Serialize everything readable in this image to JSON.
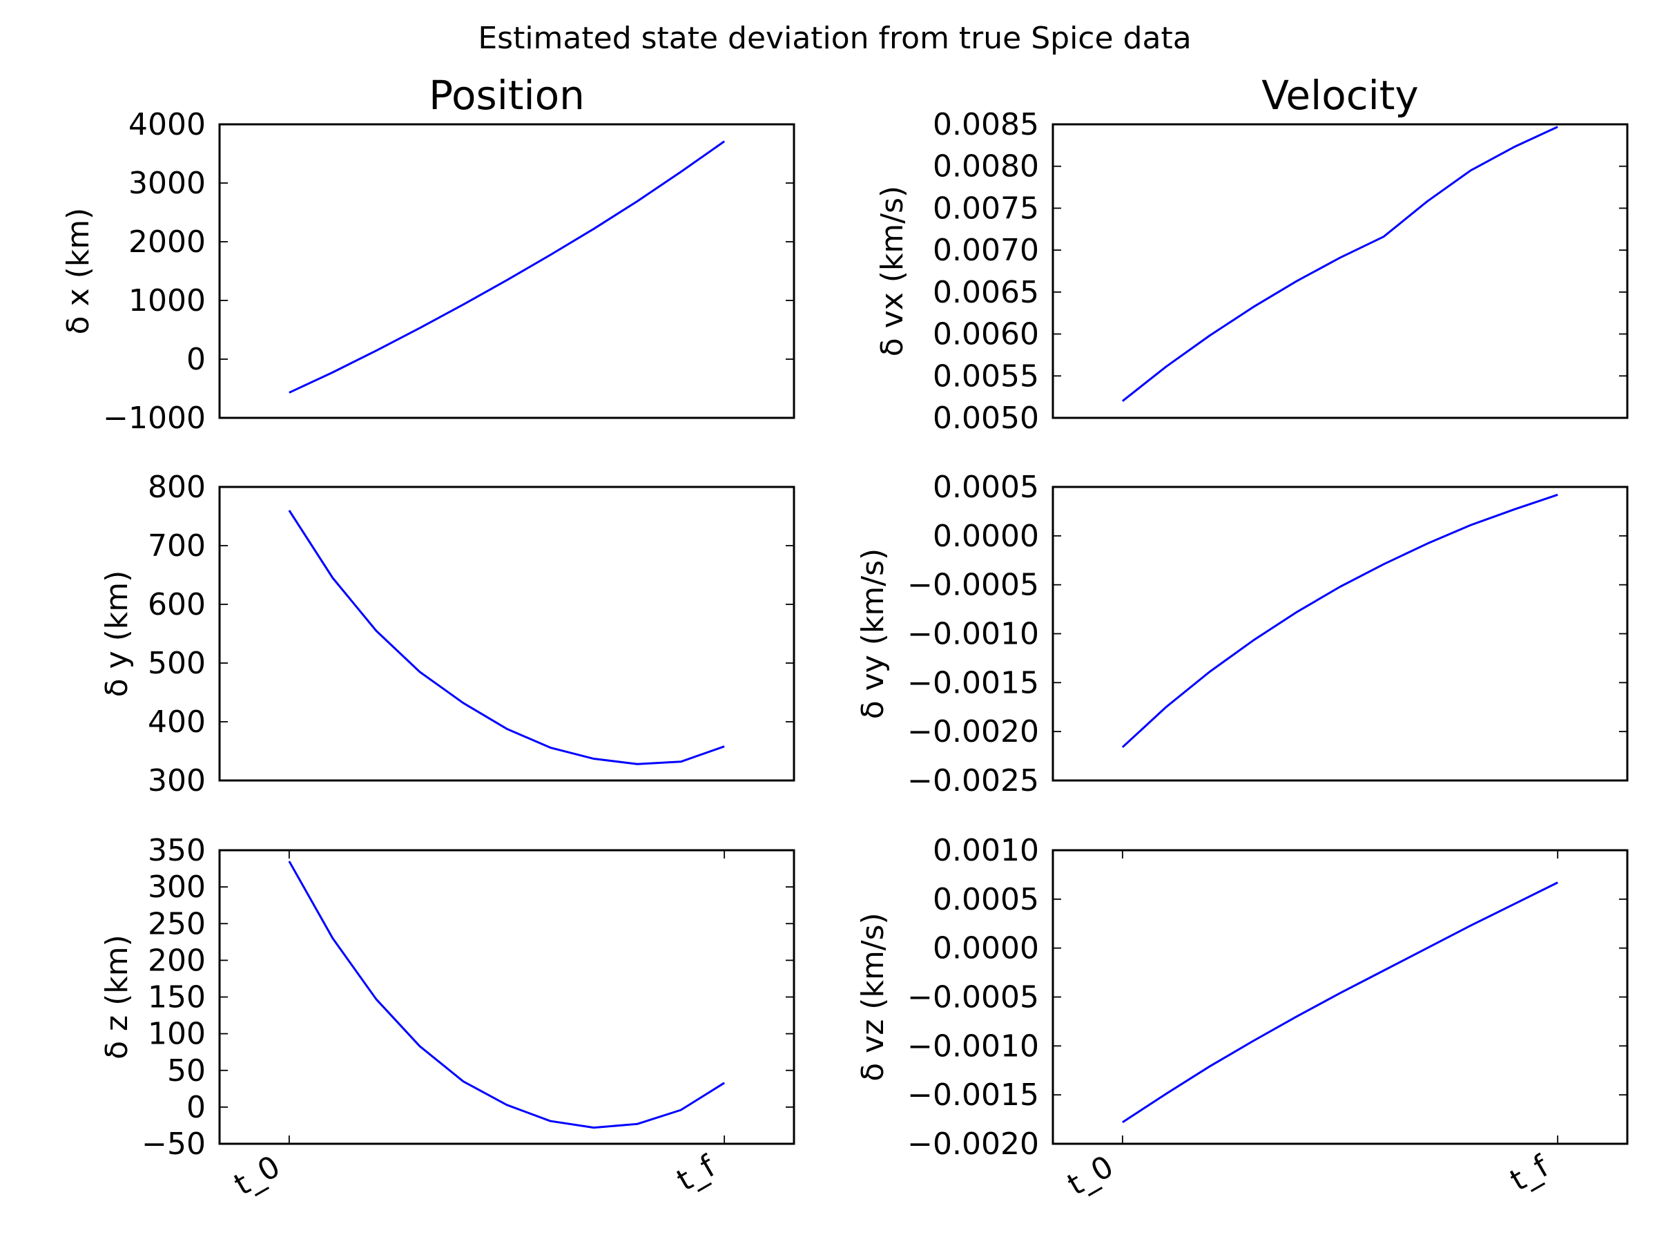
{
  "figure": {
    "suptitle": "Estimated state deviation from true Spice data",
    "line_color": "#0000ff"
  },
  "chart_data": [
    {
      "type": "line",
      "panel": "position-x",
      "title": "Position",
      "xlabel": "",
      "ylabel": "δ x (km)",
      "xlim": [
        -0.16,
        1.16
      ],
      "ylim": [
        -1000,
        4000
      ],
      "yticks": [
        "−1000",
        "0",
        "1000",
        "2000",
        "3000",
        "4000"
      ],
      "ytick_values": [
        -1000,
        0,
        1000,
        2000,
        3000,
        4000
      ],
      "xticks": [],
      "x": [
        0,
        0.1,
        0.2,
        0.3,
        0.4,
        0.5,
        0.6,
        0.7,
        0.8,
        0.9,
        1.0
      ],
      "series": [
        {
          "values": [
            -570,
            -225,
            145,
            530,
            930,
            1345,
            1775,
            2220,
            2690,
            3190,
            3710
          ]
        }
      ]
    },
    {
      "type": "line",
      "panel": "velocity-x",
      "title": "Velocity",
      "xlabel": "",
      "ylabel": "δ vx (km/s)",
      "xlim": [
        -0.16,
        1.16
      ],
      "ylim": [
        0.005,
        0.0085
      ],
      "yticks": [
        "0.0050",
        "0.0055",
        "0.0060",
        "0.0065",
        "0.0070",
        "0.0075",
        "0.0080",
        "0.0085"
      ],
      "ytick_values": [
        0.005,
        0.0055,
        0.006,
        0.0065,
        0.007,
        0.0075,
        0.008,
        0.0085
      ],
      "xticks": [],
      "x": [
        0,
        0.1,
        0.2,
        0.3,
        0.4,
        0.5,
        0.6,
        0.7,
        0.8,
        0.9,
        1.0
      ],
      "series": [
        {
          "values": [
            0.0052,
            0.00561,
            0.00598,
            0.00632,
            0.00663,
            0.00691,
            0.00716,
            0.00758,
            0.00795,
            0.00823,
            0.00847
          ]
        }
      ]
    },
    {
      "type": "line",
      "panel": "position-y",
      "title": "",
      "xlabel": "",
      "ylabel": "δ y (km)",
      "xlim": [
        -0.16,
        1.16
      ],
      "ylim": [
        300,
        800
      ],
      "yticks": [
        "300",
        "400",
        "500",
        "600",
        "700",
        "800"
      ],
      "ytick_values": [
        300,
        400,
        500,
        600,
        700,
        800
      ],
      "xticks": [],
      "x": [
        0,
        0.1,
        0.2,
        0.3,
        0.4,
        0.5,
        0.6,
        0.7,
        0.8,
        0.9,
        1.0
      ],
      "series": [
        {
          "values": [
            760,
            645,
            555,
            485,
            432,
            388,
            356,
            337,
            328,
            332,
            358
          ]
        }
      ]
    },
    {
      "type": "line",
      "panel": "velocity-y",
      "title": "",
      "xlabel": "",
      "ylabel": "δ vy (km/s)",
      "xlim": [
        -0.16,
        1.16
      ],
      "ylim": [
        -0.0025,
        0.0005
      ],
      "yticks": [
        "−0.0025",
        "−0.0020",
        "−0.0015",
        "−0.0010",
        "−0.0005",
        "0.0000",
        "0.0005"
      ],
      "ytick_values": [
        -0.0025,
        -0.002,
        -0.0015,
        -0.001,
        -0.0005,
        0,
        0.0005
      ],
      "xticks": [],
      "x": [
        0,
        0.1,
        0.2,
        0.3,
        0.4,
        0.5,
        0.6,
        0.7,
        0.8,
        0.9,
        1.0
      ],
      "series": [
        {
          "values": [
            -0.00216,
            -0.00175,
            -0.00139,
            -0.00107,
            -0.00078,
            -0.00052,
            -0.00029,
            -8e-05,
            0.00011,
            0.00027,
            0.00042
          ]
        }
      ]
    },
    {
      "type": "line",
      "panel": "position-z",
      "title": "",
      "xlabel": "",
      "ylabel": "δ z (km)",
      "xlim": [
        -0.16,
        1.16
      ],
      "ylim": [
        -50,
        350
      ],
      "yticks": [
        "−50",
        "0",
        "50",
        "100",
        "150",
        "200",
        "250",
        "300",
        "350"
      ],
      "ytick_values": [
        -50,
        0,
        50,
        100,
        150,
        200,
        250,
        300,
        350
      ],
      "xticks": [
        "t_0",
        "t_f"
      ],
      "xtick_values": [
        0,
        1
      ],
      "x": [
        0,
        0.1,
        0.2,
        0.3,
        0.4,
        0.5,
        0.6,
        0.7,
        0.8,
        0.9,
        1.0
      ],
      "series": [
        {
          "values": [
            335,
            230,
            147,
            83,
            35,
            3,
            -19,
            -28,
            -23,
            -4,
            33
          ]
        }
      ]
    },
    {
      "type": "line",
      "panel": "velocity-z",
      "title": "",
      "xlabel": "",
      "ylabel": "δ vz (km/s)",
      "xlim": [
        -0.16,
        1.16
      ],
      "ylim": [
        -0.002,
        0.001
      ],
      "yticks": [
        "−0.0020",
        "−0.0015",
        "−0.0010",
        "−0.0005",
        "0.0000",
        "0.0005",
        "0.0010"
      ],
      "ytick_values": [
        -0.002,
        -0.0015,
        -0.001,
        -0.0005,
        0,
        0.0005,
        0.001
      ],
      "xticks": [
        "t_0",
        "t_f"
      ],
      "xtick_values": [
        0,
        1
      ],
      "x": [
        0,
        0.1,
        0.2,
        0.3,
        0.4,
        0.5,
        0.6,
        0.7,
        0.8,
        0.9,
        1.0
      ],
      "series": [
        {
          "values": [
            -0.00178,
            -0.00149,
            -0.00121,
            -0.00095,
            -0.0007,
            -0.00046,
            -0.00023,
            0.0,
            0.00023,
            0.00045,
            0.00067
          ]
        }
      ]
    }
  ]
}
